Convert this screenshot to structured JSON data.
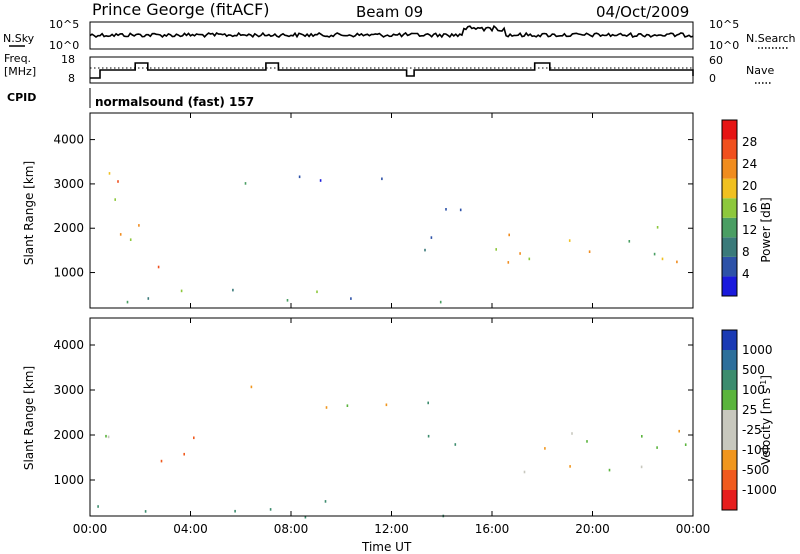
{
  "header": {
    "station": "Prince George (fitACF)",
    "beam": "Beam 09",
    "date": "04/Oct/2009"
  },
  "noise_panel": {
    "left_label": "N.Sky",
    "right_label": "N.Search",
    "left_ticks": [
      "10^5",
      "10^0"
    ],
    "right_ticks": [
      "10^5",
      "10^0"
    ]
  },
  "freq_panel": {
    "left_label_1": "Freq.",
    "left_label_2": "[MHz]",
    "right_label": "Nave",
    "left_ticks": [
      "18",
      "8"
    ],
    "right_ticks": [
      "60",
      "0"
    ]
  },
  "cpid_panel": {
    "label": "CPID",
    "program": "normalsound (fast) 157"
  },
  "time_axis": {
    "label": "Time UT",
    "ticks": [
      "00:00",
      "04:00",
      "08:00",
      "12:00",
      "16:00",
      "20:00",
      "00:00"
    ]
  },
  "colors": {
    "power_scale": [
      "#1a1adc",
      "#2d52a8",
      "#3a7a7a",
      "#4a9e63",
      "#8dc83c",
      "#f0c020",
      "#f08c1e",
      "#f0501e",
      "#e61414"
    ],
    "velocity_scale": [
      "#1a3ab4",
      "#2d6f9b",
      "#3c8c6e",
      "#5ab43c",
      "#c8c8be",
      "#c8c8be",
      "#f0961e",
      "#f05a1e",
      "#e61e1e"
    ]
  },
  "chart_data": [
    {
      "type": "heatmap",
      "ylabel": "Slant Range [km]",
      "ylim": [
        200,
        4600
      ],
      "yticks": [
        1000,
        2000,
        3000,
        4000
      ],
      "xlabel": "",
      "xlim_hours": [
        0,
        24
      ],
      "colorbar": {
        "label": "Power [dB]",
        "ticks": [
          4,
          8,
          12,
          16,
          20,
          24,
          28
        ],
        "range": [
          0,
          30
        ]
      },
      "regions": [
        {
          "t0": 0.0,
          "t1": 1.5,
          "r0": 1000,
          "r1": 3500,
          "level": 20
        },
        {
          "t0": 1.5,
          "t1": 4.2,
          "r0": 1100,
          "r1": 2100,
          "level": 22
        },
        {
          "t0": 5.5,
          "t1": 7.0,
          "r0": 2600,
          "r1": 3300,
          "level": 6
        },
        {
          "t0": 8.2,
          "t1": 12.5,
          "r0": 2600,
          "r1": 3300,
          "level": 6
        },
        {
          "t0": 13.0,
          "t1": 15.0,
          "r0": 1400,
          "r1": 3000,
          "level": 8
        },
        {
          "t0": 16.0,
          "t1": 24.0,
          "r0": 1200,
          "r1": 2500,
          "level": 18
        },
        {
          "t0": 0.0,
          "t1": 16.0,
          "r0": 200,
          "r1": 650,
          "level": 10
        }
      ]
    },
    {
      "type": "heatmap",
      "ylabel": "Slant Range [km]",
      "ylim": [
        200,
        4600
      ],
      "yticks": [
        1000,
        2000,
        3000,
        4000
      ],
      "xlabel": "Time UT",
      "xlim_hours": [
        0,
        24
      ],
      "colorbar": {
        "label": "Velocity [m s^-1]",
        "ticks": [
          1000,
          500,
          100,
          25,
          -25,
          -100,
          -500,
          -1000
        ]
      },
      "regions": [
        {
          "t0": 0.0,
          "t1": 1.5,
          "r0": 1100,
          "r1": 2200,
          "velocity": 0
        },
        {
          "t0": 1.5,
          "t1": 4.2,
          "r0": 1100,
          "r1": 2000,
          "velocity": -300
        },
        {
          "t0": 5.5,
          "t1": 7.0,
          "r0": 2600,
          "r1": 3300,
          "velocity": 0
        },
        {
          "t0": 8.2,
          "t1": 12.5,
          "r0": 2600,
          "r1": 3200,
          "velocity": 0
        },
        {
          "t0": 13.0,
          "t1": 15.0,
          "r0": 1400,
          "r1": 2800,
          "velocity": 200
        },
        {
          "t0": 16.0,
          "t1": 24.0,
          "r0": 1200,
          "r1": 2400,
          "velocity": 0
        },
        {
          "t0": 0.0,
          "t1": 16.0,
          "r0": 200,
          "r1": 600,
          "velocity": 200
        }
      ]
    }
  ]
}
